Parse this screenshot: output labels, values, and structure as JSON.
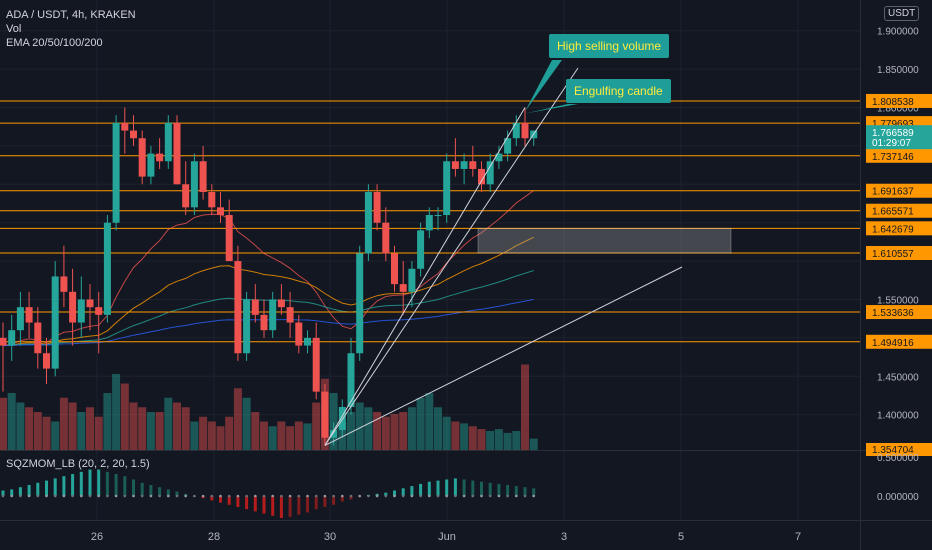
{
  "header": {
    "symbol_line": "ADA / USDT, 4h, KRAKEN",
    "vol_label": "Vol",
    "ema_label": "EMA 20/50/100/200",
    "currency": "USDT"
  },
  "indicator": {
    "label": "SQZMOM_LB (20, 2, 20, 1.5)",
    "ticks": [
      "0.500000",
      "0.000000"
    ]
  },
  "annotations": [
    {
      "text": "High selling volume"
    },
    {
      "text": "Engulfing candle"
    }
  ],
  "colors": {
    "background": "#131722",
    "up": "#26a69a",
    "down": "#ef5350",
    "level_line": "#ff9800",
    "callout_bg": "#1f9d98",
    "callout_text": "#ffeb3b"
  },
  "chart_data": {
    "type": "candlestick",
    "title": "ADA / USDT, 4h, KRAKEN",
    "ylim": [
      1.354,
      1.94
    ],
    "y_ticks": [
      "1.900000",
      "1.850000",
      "1.800000",
      "1.550000",
      "1.450000",
      "1.400000"
    ],
    "x_ticks": [
      "26",
      "28",
      "30",
      "Jun",
      "3",
      "5",
      "7"
    ],
    "price_labels": {
      "last_price": "1.766589",
      "countdown": "01:29:07",
      "bottom": "1.354704"
    },
    "horizontal_levels": [
      1.808538,
      1.779693,
      1.737146,
      1.691637,
      1.665571,
      1.642679,
      1.610557,
      1.533636,
      1.494916
    ],
    "candles": [
      [
        1.5,
        1.52,
        1.43,
        1.49
      ],
      [
        1.49,
        1.53,
        1.47,
        1.51
      ],
      [
        1.51,
        1.56,
        1.49,
        1.54
      ],
      [
        1.54,
        1.56,
        1.5,
        1.52
      ],
      [
        1.52,
        1.54,
        1.46,
        1.48
      ],
      [
        1.48,
        1.5,
        1.44,
        1.46
      ],
      [
        1.46,
        1.6,
        1.45,
        1.58
      ],
      [
        1.58,
        1.62,
        1.54,
        1.56
      ],
      [
        1.56,
        1.59,
        1.49,
        1.52
      ],
      [
        1.52,
        1.58,
        1.5,
        1.55
      ],
      [
        1.55,
        1.57,
        1.51,
        1.54
      ],
      [
        1.54,
        1.56,
        1.48,
        1.53
      ],
      [
        1.53,
        1.66,
        1.52,
        1.65
      ],
      [
        1.65,
        1.79,
        1.64,
        1.78
      ],
      [
        1.78,
        1.8,
        1.74,
        1.77
      ],
      [
        1.77,
        1.79,
        1.75,
        1.76
      ],
      [
        1.76,
        1.77,
        1.7,
        1.71
      ],
      [
        1.71,
        1.75,
        1.7,
        1.74
      ],
      [
        1.74,
        1.76,
        1.72,
        1.73
      ],
      [
        1.73,
        1.79,
        1.72,
        1.78
      ],
      [
        1.78,
        1.79,
        1.7,
        1.7
      ],
      [
        1.7,
        1.73,
        1.66,
        1.67
      ],
      [
        1.67,
        1.74,
        1.66,
        1.73
      ],
      [
        1.73,
        1.75,
        1.68,
        1.69
      ],
      [
        1.69,
        1.7,
        1.66,
        1.67
      ],
      [
        1.67,
        1.69,
        1.65,
        1.66
      ],
      [
        1.66,
        1.68,
        1.6,
        1.6
      ],
      [
        1.6,
        1.62,
        1.47,
        1.48
      ],
      [
        1.48,
        1.56,
        1.47,
        1.55
      ],
      [
        1.55,
        1.57,
        1.52,
        1.53
      ],
      [
        1.53,
        1.55,
        1.5,
        1.51
      ],
      [
        1.51,
        1.56,
        1.5,
        1.55
      ],
      [
        1.55,
        1.57,
        1.53,
        1.54
      ],
      [
        1.54,
        1.56,
        1.5,
        1.52
      ],
      [
        1.52,
        1.53,
        1.48,
        1.49
      ],
      [
        1.49,
        1.51,
        1.48,
        1.5
      ],
      [
        1.5,
        1.52,
        1.42,
        1.43
      ],
      [
        1.43,
        1.44,
        1.36,
        1.37
      ],
      [
        1.37,
        1.39,
        1.36,
        1.38
      ],
      [
        1.38,
        1.42,
        1.37,
        1.41
      ],
      [
        1.41,
        1.5,
        1.4,
        1.48
      ],
      [
        1.48,
        1.62,
        1.47,
        1.61
      ],
      [
        1.61,
        1.7,
        1.6,
        1.69
      ],
      [
        1.69,
        1.7,
        1.64,
        1.65
      ],
      [
        1.65,
        1.67,
        1.6,
        1.61
      ],
      [
        1.61,
        1.62,
        1.56,
        1.57
      ],
      [
        1.57,
        1.6,
        1.53,
        1.56
      ],
      [
        1.56,
        1.6,
        1.54,
        1.59
      ],
      [
        1.59,
        1.65,
        1.58,
        1.64
      ],
      [
        1.64,
        1.67,
        1.63,
        1.66
      ],
      [
        1.66,
        1.67,
        1.64,
        1.66
      ],
      [
        1.66,
        1.74,
        1.65,
        1.73
      ],
      [
        1.73,
        1.76,
        1.71,
        1.72
      ],
      [
        1.72,
        1.74,
        1.7,
        1.73
      ],
      [
        1.73,
        1.75,
        1.71,
        1.72
      ],
      [
        1.72,
        1.73,
        1.69,
        1.7
      ],
      [
        1.7,
        1.74,
        1.69,
        1.73
      ],
      [
        1.73,
        1.75,
        1.72,
        1.74
      ],
      [
        1.74,
        1.77,
        1.73,
        1.76
      ],
      [
        1.76,
        1.79,
        1.75,
        1.78
      ],
      [
        1.78,
        1.8,
        1.75,
        1.76
      ],
      [
        1.76,
        1.77,
        1.75,
        1.77
      ]
    ],
    "volume": [
      0.55,
      0.6,
      0.5,
      0.45,
      0.4,
      0.35,
      0.3,
      0.55,
      0.5,
      0.4,
      0.45,
      0.35,
      0.6,
      0.8,
      0.7,
      0.5,
      0.45,
      0.4,
      0.4,
      0.55,
      0.5,
      0.45,
      0.3,
      0.35,
      0.3,
      0.25,
      0.35,
      0.65,
      0.55,
      0.4,
      0.3,
      0.25,
      0.3,
      0.25,
      0.3,
      0.28,
      0.5,
      0.75,
      0.6,
      0.3,
      0.4,
      0.5,
      0.45,
      0.4,
      0.35,
      0.38,
      0.4,
      0.45,
      0.55,
      0.6,
      0.45,
      0.35,
      0.3,
      0.28,
      0.25,
      0.22,
      0.2,
      0.22,
      0.18,
      0.2,
      0.9,
      0.12
    ],
    "squeeze_momentum": [
      0.05,
      0.06,
      0.08,
      0.1,
      0.12,
      0.14,
      0.16,
      0.18,
      0.2,
      0.22,
      0.24,
      0.24,
      0.22,
      0.2,
      0.18,
      0.15,
      0.12,
      0.1,
      0.08,
      0.06,
      0.04,
      0.02,
      0.0,
      -0.02,
      -0.04,
      -0.06,
      -0.08,
      -0.1,
      -0.12,
      -0.14,
      -0.16,
      -0.18,
      -0.2,
      -0.19,
      -0.17,
      -0.15,
      -0.12,
      -0.1,
      -0.08,
      -0.05,
      -0.03,
      -0.01,
      0.01,
      0.02,
      0.03,
      0.05,
      0.07,
      0.09,
      0.11,
      0.13,
      0.14,
      0.15,
      0.16,
      0.15,
      0.14,
      0.13,
      0.12,
      0.11,
      0.1,
      0.09,
      0.08,
      0.07
    ]
  }
}
